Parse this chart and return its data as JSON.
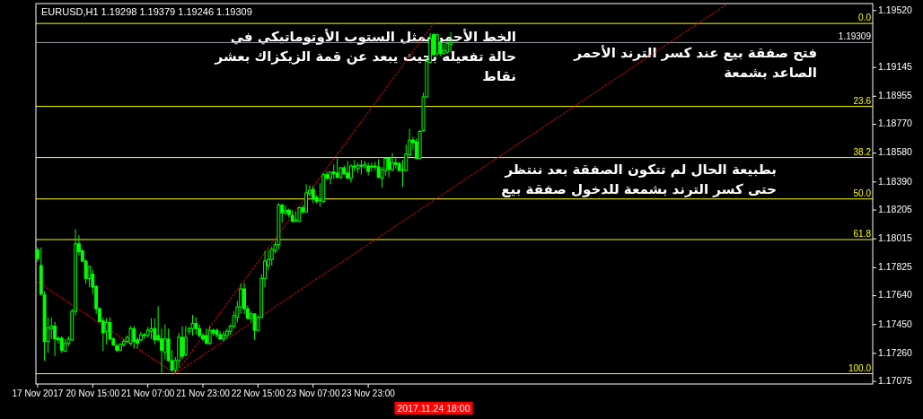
{
  "chart_data": {
    "type": "candlestick",
    "title": "EURUSD,H1  1.19298 1.19379 1.19246 1.19309",
    "color": "#00ff00",
    "categories": [
      "17 Nov 2017",
      null,
      null,
      null,
      null,
      null,
      null,
      null,
      null,
      null,
      null,
      null,
      null,
      null,
      null,
      null,
      "20 Nov 15:00",
      null,
      null,
      null,
      null,
      null,
      null,
      null,
      null,
      null,
      null,
      null,
      null,
      null,
      null,
      null,
      "21 Nov 07:00",
      null,
      null,
      null,
      null,
      null,
      null,
      null,
      null,
      null,
      null,
      null,
      null,
      null,
      null,
      null,
      "21 Nov 23:00",
      null,
      null,
      null,
      null,
      null,
      null,
      null,
      null,
      null,
      null,
      null,
      null,
      null,
      null,
      null,
      "22 Nov 15:00",
      null,
      null,
      null,
      null,
      null,
      null,
      null,
      null,
      null,
      null,
      null,
      null,
      null,
      null,
      null,
      "23 Nov 07:00",
      null,
      null,
      null,
      null,
      null,
      null,
      null,
      null,
      null,
      null,
      null,
      null,
      null,
      null,
      null,
      "23 Nov 23:00",
      null,
      null,
      null,
      null,
      null,
      null,
      null,
      null,
      null,
      null,
      null,
      null,
      null,
      null,
      null,
      null,
      null,
      null,
      null,
      null,
      null,
      null,
      null,
      null,
      null,
      null,
      null,
      null,
      null,
      null,
      null,
      null,
      null,
      null,
      null,
      null,
      null,
      null,
      null,
      null,
      null,
      null,
      null,
      null,
      null,
      null,
      null,
      null,
      null,
      null,
      null,
      null,
      null,
      null,
      null,
      null,
      null,
      null,
      null,
      null,
      null,
      null,
      null,
      null,
      null,
      null,
      null,
      null,
      null,
      null,
      null,
      null,
      null,
      null,
      null,
      null,
      null,
      null,
      null,
      null,
      null,
      null,
      null,
      null,
      null,
      null,
      null,
      null,
      null,
      null,
      null,
      null,
      null,
      null,
      null,
      null,
      null,
      null,
      null,
      null,
      null,
      null,
      null,
      null,
      null,
      null,
      null,
      null,
      null,
      null,
      null,
      null,
      null,
      null,
      null,
      null,
      null,
      null,
      null,
      null,
      null,
      null,
      null,
      null,
      null,
      null,
      null,
      null,
      null,
      null,
      null,
      null,
      null,
      null,
      null,
      null,
      null,
      null,
      null,
      null,
      null,
      null,
      null,
      null,
      null,
      null
    ],
    "ohlc": [
      [
        1.17942,
        1.17959,
        1.17862,
        1.17885
      ],
      [
        1.17839,
        1.17959,
        1.1764,
        1.17651
      ],
      [
        1.17645,
        1.17668,
        1.17212,
        1.17338
      ],
      [
        1.17338,
        1.17497,
        1.17263,
        1.17429
      ],
      [
        1.17423,
        1.17497,
        1.17355,
        1.1744
      ],
      [
        1.1744,
        1.17469,
        1.17241,
        1.17355
      ],
      [
        1.1736,
        1.17372,
        1.17326,
        1.17349
      ],
      [
        1.1736,
        1.17372,
        1.17263,
        1.17281
      ],
      [
        1.17275,
        1.17355,
        1.17269,
        1.17326
      ],
      [
        1.17326,
        1.17372,
        1.17309,
        1.17355
      ],
      [
        1.17349,
        1.17554,
        1.17343,
        1.17537
      ],
      [
        1.17537,
        1.18079,
        1.17509,
        1.17982
      ],
      [
        1.17982,
        1.18039,
        1.17908,
        1.1793
      ],
      [
        1.17936,
        1.17947,
        1.17862,
        1.17868
      ],
      [
        1.17868,
        1.17879,
        1.17719,
        1.17754
      ],
      [
        1.17754,
        1.17839,
        1.17697,
        1.17833
      ],
      [
        1.17782,
        1.17811,
        1.17651,
        1.17697
      ],
      [
        1.17702,
        1.17708,
        1.1752,
        1.17554
      ],
      [
        1.17554,
        1.17566,
        1.17463,
        1.17469
      ],
      [
        1.17474,
        1.17497,
        1.17275,
        1.17395
      ],
      [
        1.17406,
        1.17492,
        1.1732,
        1.17463
      ],
      [
        1.17463,
        1.17497,
        1.17349,
        1.17355
      ],
      [
        1.17355,
        1.17366,
        1.17309,
        1.17315
      ],
      [
        1.17309,
        1.17326,
        1.17269,
        1.17281
      ],
      [
        1.17281,
        1.17326,
        1.17275,
        1.1732
      ],
      [
        1.17315,
        1.17355,
        1.17303,
        1.17338
      ],
      [
        1.17338,
        1.17377,
        1.17326,
        1.17366
      ],
      [
        1.17326,
        1.1744,
        1.17315,
        1.17423
      ],
      [
        1.17423,
        1.1744,
        1.17292,
        1.17338
      ],
      [
        1.17349,
        1.17366,
        1.17292,
        1.17326
      ],
      [
        1.17349,
        1.174,
        1.17338,
        1.17383
      ],
      [
        1.17383,
        1.17395,
        1.17355,
        1.17377
      ],
      [
        1.17377,
        1.17434,
        1.17366,
        1.17412
      ],
      [
        1.17406,
        1.17492,
        1.17355,
        1.17423
      ],
      [
        1.17423,
        1.17492,
        1.1732,
        1.17349
      ],
      [
        1.17377,
        1.17571,
        1.17338,
        1.17349
      ],
      [
        1.17355,
        1.17423,
        1.17132,
        1.17281
      ],
      [
        1.17269,
        1.17451,
        1.17224,
        1.17355
      ],
      [
        1.17355,
        1.17423,
        1.17206,
        1.17212
      ],
      [
        1.17212,
        1.17281,
        1.17139,
        1.1715
      ],
      [
        1.1715,
        1.17235,
        1.17126,
        1.17212
      ],
      [
        1.17212,
        1.17395,
        1.17166,
        1.17366
      ],
      [
        1.17366,
        1.1744,
        1.17224,
        1.17241
      ],
      [
        1.17252,
        1.1744,
        1.17241,
        1.17366
      ],
      [
        1.17406,
        1.17434,
        1.17383,
        1.17423
      ],
      [
        1.17423,
        1.17514,
        1.17377,
        1.17457
      ],
      [
        1.17457,
        1.17497,
        1.17383,
        1.17423
      ],
      [
        1.17423,
        1.17451,
        1.17366,
        1.17377
      ],
      [
        1.17377,
        1.17395,
        1.17338,
        1.17355
      ],
      [
        1.17377,
        1.17423,
        1.1732,
        1.17326
      ],
      [
        1.17326,
        1.1744,
        1.17315,
        1.17412
      ],
      [
        1.17412,
        1.17423,
        1.17377,
        1.17395
      ],
      [
        1.17412,
        1.17423,
        1.17366,
        1.17383
      ],
      [
        1.17383,
        1.17406,
        1.17349,
        1.17355
      ],
      [
        1.17355,
        1.17406,
        1.17338,
        1.17383
      ],
      [
        1.17377,
        1.17423,
        1.17355,
        1.17406
      ],
      [
        1.17406,
        1.17451,
        1.17383,
        1.1744
      ],
      [
        1.1744,
        1.17537,
        1.17423,
        1.17509
      ],
      [
        1.17497,
        1.17605,
        1.17463,
        1.17566
      ],
      [
        1.17566,
        1.17719,
        1.1752,
        1.17685
      ],
      [
        1.17685,
        1.17725,
        1.1752,
        1.17554
      ],
      [
        1.17554,
        1.17577,
        1.1748,
        1.17492
      ],
      [
        1.17492,
        1.17537,
        1.17463,
        1.1752
      ],
      [
        1.1752,
        1.17526,
        1.17349,
        1.17412
      ],
      [
        1.17412,
        1.17509,
        1.17406,
        1.17497
      ],
      [
        1.17497,
        1.17782,
        1.17492,
        1.17754
      ],
      [
        1.17754,
        1.17936,
        1.17697,
        1.17868
      ],
      [
        1.17839,
        1.17942,
        1.17811,
        1.17879
      ],
      [
        1.17879,
        1.17965,
        1.17839,
        1.17947
      ],
      [
        1.17936,
        1.17999,
        1.17919,
        1.17976
      ],
      [
        1.17976,
        1.1825,
        1.17947,
        1.18238
      ],
      [
        1.18238,
        1.18244,
        1.18124,
        1.18187
      ],
      [
        1.18187,
        1.18238,
        1.1817,
        1.18204
      ],
      [
        1.18204,
        1.18215,
        1.18153,
        1.18175
      ],
      [
        1.1817,
        1.18204,
        1.18124,
        1.1813
      ],
      [
        1.1813,
        1.18193,
        1.18124,
        1.18141
      ],
      [
        1.1813,
        1.18227,
        1.18124,
        1.18221
      ],
      [
        1.18221,
        1.18238,
        1.18181,
        1.18193
      ],
      [
        1.18193,
        1.18375,
        1.18187,
        1.18318
      ],
      [
        1.18312,
        1.18369,
        1.18295,
        1.18335
      ],
      [
        1.18341,
        1.18364,
        1.1825,
        1.18278
      ],
      [
        1.18289,
        1.18301,
        1.1825,
        1.18261
      ],
      [
        1.18267,
        1.18381,
        1.18227,
        1.18278
      ],
      [
        1.18261,
        1.18449,
        1.1825,
        1.18438
      ],
      [
        1.18438,
        1.1846,
        1.18404,
        1.18415
      ],
      [
        1.18415,
        1.1846,
        1.18375,
        1.18455
      ],
      [
        1.18455,
        1.18506,
        1.1841,
        1.18443
      ],
      [
        1.18449,
        1.18546,
        1.1841,
        1.18421
      ],
      [
        1.18421,
        1.18489,
        1.1841,
        1.18483
      ],
      [
        1.18483,
        1.185,
        1.18438,
        1.18443
      ],
      [
        1.18449,
        1.18529,
        1.1841,
        1.18415
      ],
      [
        1.18415,
        1.18506,
        1.18386,
        1.18495
      ],
      [
        1.18495,
        1.18535,
        1.1846,
        1.18489
      ],
      [
        1.18478,
        1.18517,
        1.18449,
        1.185
      ],
      [
        1.185,
        1.18535,
        1.18438,
        1.18495
      ],
      [
        1.18495,
        1.18529,
        1.18478,
        1.18506
      ],
      [
        1.18495,
        1.18517,
        1.18432,
        1.1846
      ],
      [
        1.18489,
        1.18517,
        1.1846,
        1.18495
      ],
      [
        1.18495,
        1.18523,
        1.18466,
        1.18489
      ],
      [
        1.18489,
        1.1854,
        1.18415,
        1.18421
      ],
      [
        1.18415,
        1.18489,
        1.18352,
        1.18472
      ],
      [
        1.18466,
        1.18552,
        1.18432,
        1.18546
      ],
      [
        1.18546,
        1.18552,
        1.18421,
        1.18472
      ],
      [
        1.18472,
        1.1858,
        1.1846,
        1.18517
      ],
      [
        1.18517,
        1.18546,
        1.18478,
        1.18506
      ],
      [
        1.18512,
        1.18523,
        1.1846,
        1.18466
      ],
      [
        1.18472,
        1.18535,
        1.18358,
        1.18466
      ],
      [
        1.18466,
        1.18637,
        1.1846,
        1.18574
      ],
      [
        1.18569,
        1.1874,
        1.18557,
        1.18666
      ],
      [
        1.18666,
        1.18688,
        1.18603,
        1.18649
      ],
      [
        1.18655,
        1.18677,
        1.1854,
        1.18546
      ],
      [
        1.18546,
        1.18734,
        1.1854,
        1.18723
      ],
      [
        1.18728,
        1.18979,
        1.18723,
        1.18951
      ],
      [
        1.18951,
        1.19196,
        1.18945,
        1.19184
      ],
      [
        1.19179,
        1.19372,
        1.19173,
        1.19333
      ],
      [
        1.19361,
        1.19372,
        1.19219,
        1.1923
      ],
      [
        1.19236,
        1.19367,
        1.19219,
        1.19361
      ],
      [
        1.19304,
        1.19321,
        1.19219,
        1.19236
      ],
      [
        1.19236,
        1.19304,
        1.1923,
        1.19258
      ],
      [
        1.19247,
        1.1931,
        1.19236,
        1.19304
      ],
      [
        1.19298,
        1.19379,
        1.19246,
        1.19309
      ],
      null,
      null,
      null,
      null,
      null,
      null,
      null,
      null,
      null,
      null,
      null,
      null,
      null,
      null,
      null,
      null,
      null,
      null,
      null,
      null,
      null,
      null,
      null,
      null,
      null,
      null,
      null,
      null,
      null,
      null,
      null,
      null,
      null,
      null,
      null,
      null,
      null,
      null,
      null,
      null,
      null,
      null,
      null,
      null,
      null,
      null,
      null,
      null,
      null,
      null,
      null,
      null,
      null,
      null,
      null,
      null,
      null,
      null,
      null,
      null,
      null,
      null,
      null,
      null,
      null,
      null,
      null,
      null,
      null,
      null,
      null,
      null,
      null,
      null,
      null,
      null,
      null,
      null,
      null,
      null,
      null,
      null,
      null,
      null,
      null,
      null,
      null,
      null,
      null,
      null,
      null,
      null,
      null,
      null,
      null,
      null,
      null,
      null,
      null,
      null,
      null,
      null,
      null,
      null,
      null,
      null,
      null,
      null,
      null,
      null,
      null,
      null,
      null,
      null,
      null,
      null,
      null,
      null,
      null,
      null,
      null,
      null
    ],
    "series": [
      {
        "type": "line",
        "color": "#ff0000",
        "line_style": "dotted",
        "values": [
          1.17731,
          null,
          null,
          null,
          null,
          null,
          null,
          null,
          null,
          null,
          null,
          null,
          null,
          null,
          null,
          null,
          null,
          null,
          null,
          null,
          null,
          null,
          null,
          null,
          null,
          null,
          null,
          null,
          null,
          null,
          null,
          null,
          null,
          null,
          null,
          null,
          null,
          null,
          null,
          null,
          1.17126,
          null,
          null,
          null,
          null,
          null,
          null,
          null,
          null,
          null,
          null,
          null,
          null,
          null,
          null,
          null,
          null,
          null,
          null,
          null,
          null,
          null,
          null,
          null,
          null,
          null,
          null,
          null,
          null,
          null,
          null,
          null,
          null,
          null,
          null,
          null,
          null,
          null,
          null,
          null,
          null,
          null,
          null,
          null,
          null,
          null,
          null,
          null,
          null,
          null,
          null,
          null,
          null,
          null,
          null,
          null,
          null,
          null,
          null,
          null,
          null,
          null,
          null,
          null,
          null,
          null,
          null,
          null,
          null,
          null,
          null,
          null,
          null,
          null,
          null,
          null,
          null,
          null,
          null,
          null,
          null,
          null,
          null,
          null,
          null,
          null,
          null,
          null,
          null,
          null,
          null,
          null,
          null,
          null,
          null,
          null,
          null,
          null,
          null,
          null,
          null,
          null,
          null,
          null,
          null,
          null,
          null,
          null,
          null,
          null,
          null,
          null,
          null,
          null,
          null,
          null,
          null,
          null,
          null,
          null,
          null,
          null,
          null,
          null,
          null,
          null,
          null,
          null,
          null,
          null,
          null,
          null,
          null,
          null,
          null,
          null,
          null,
          null,
          null,
          null,
          null,
          null,
          null,
          null,
          null,
          null,
          null,
          null,
          null,
          null,
          null,
          null,
          null,
          null,
          null,
          null,
          null,
          null,
          null,
          null,
          null,
          null,
          null,
          null,
          null,
          null,
          null,
          null,
          null,
          null,
          null,
          null,
          null,
          null,
          null,
          null,
          null,
          null,
          null,
          null,
          null,
          null,
          null,
          null,
          null,
          null,
          null,
          null,
          null,
          null,
          null,
          null,
          null,
          null,
          null,
          null,
          null,
          null,
          null,
          null,
          null,
          null,
          null
        ]
      },
      {
        "type": "line",
        "color": "#ff0000",
        "line_style": "dotted",
        "values": [
          null,
          null,
          null,
          null,
          null,
          null,
          null,
          null,
          null,
          null,
          null,
          null,
          null,
          null,
          null,
          null,
          null,
          null,
          null,
          null,
          null,
          null,
          null,
          null,
          null,
          null,
          null,
          null,
          null,
          null,
          null,
          null,
          null,
          null,
          null,
          null,
          null,
          null,
          null,
          null,
          1.17126,
          null,
          null,
          null,
          null,
          null,
          null,
          null,
          null,
          null,
          null,
          null,
          null,
          null,
          null,
          null,
          null,
          null,
          null,
          null,
          null,
          null,
          null,
          null,
          null,
          null,
          null,
          null,
          null,
          null,
          null,
          null,
          null,
          null,
          null,
          null,
          null,
          null,
          null,
          null,
          null,
          null,
          null,
          null,
          null,
          null,
          null,
          null,
          null,
          null,
          null,
          null,
          null,
          null,
          null,
          null,
          null,
          null,
          null,
          null,
          null,
          null,
          null,
          null,
          null,
          null,
          null,
          null,
          null,
          null,
          null,
          null,
          null,
          null,
          null,
          1.19435,
          null,
          null,
          null,
          null,
          null,
          null,
          null,
          null,
          null,
          null,
          null,
          null,
          null,
          null,
          null,
          null,
          null,
          null,
          null,
          null,
          null,
          null,
          null,
          null,
          null,
          null,
          null,
          null,
          null,
          null,
          null,
          null,
          null,
          null,
          null,
          null,
          null,
          null,
          null,
          null,
          null,
          null,
          null,
          null,
          null,
          null,
          null,
          null,
          null,
          null,
          null,
          null,
          null,
          null,
          null,
          null,
          null,
          null,
          null,
          null,
          null,
          null,
          null,
          null,
          null,
          null,
          null,
          null,
          null,
          null,
          null,
          null,
          null,
          null,
          null,
          null,
          null,
          null,
          null,
          null,
          null,
          null,
          null,
          null,
          null,
          null,
          null,
          null,
          null,
          null,
          null,
          null,
          null,
          null,
          null,
          null,
          null,
          null,
          null,
          null,
          null,
          null,
          null,
          null,
          null,
          null,
          null,
          null,
          null,
          null,
          null,
          null,
          null,
          null,
          null,
          null,
          null,
          null,
          null,
          null,
          null,
          null,
          null,
          null,
          null,
          null,
          null
        ]
      },
      {
        "type": "line",
        "color": "#ff0000",
        "line_style": "dotted",
        "values": [
          null,
          null,
          null,
          null,
          null,
          null,
          null,
          null,
          null,
          null,
          null,
          null,
          null,
          null,
          null,
          null,
          null,
          null,
          null,
          null,
          null,
          null,
          null,
          null,
          null,
          null,
          null,
          null,
          null,
          null,
          null,
          null,
          null,
          null,
          null,
          null,
          null,
          null,
          null,
          null,
          1.17126,
          null,
          null,
          null,
          null,
          null,
          null,
          null,
          null,
          null,
          null,
          null,
          null,
          null,
          null,
          null,
          null,
          null,
          null,
          null,
          null,
          null,
          null,
          null,
          null,
          null,
          null,
          null,
          null,
          null,
          null,
          null,
          null,
          null,
          null,
          null,
          null,
          null,
          null,
          null,
          null,
          null,
          null,
          null,
          null,
          null,
          null,
          null,
          null,
          null,
          null,
          null,
          null,
          null,
          null,
          null,
          null,
          null,
          null,
          null,
          null,
          null,
          null,
          null,
          null,
          null,
          null,
          null,
          null,
          null,
          null,
          null,
          null,
          null,
          null,
          null,
          null,
          null,
          null,
          null,
          null,
          null,
          null,
          null,
          null,
          null,
          null,
          null,
          null,
          null,
          null,
          null,
          null,
          null,
          null,
          null,
          null,
          null,
          null,
          null,
          null,
          null,
          null,
          null,
          null,
          null,
          null,
          null,
          null,
          null,
          null,
          null,
          null,
          null,
          null,
          null,
          null,
          null,
          null,
          null,
          null,
          null,
          null,
          null,
          null,
          null,
          null,
          null,
          null,
          null,
          null,
          null,
          null,
          null,
          null,
          null,
          null,
          null,
          null,
          null,
          null,
          null,
          null,
          null,
          null,
          null,
          null,
          null,
          null,
          null,
          null,
          null,
          null,
          null,
          null,
          null,
          null,
          null,
          null,
          null,
          1.1956,
          null,
          null,
          null,
          null,
          null,
          null,
          null,
          null,
          null,
          null,
          null,
          null,
          null,
          null,
          null,
          null,
          null,
          null,
          null,
          null,
          null,
          null,
          null,
          null,
          null,
          null,
          null,
          null,
          null,
          null,
          null,
          null,
          null,
          null,
          null,
          null,
          null,
          null,
          null,
          null,
          null,
          null
        ]
      }
    ],
    "ylim": [
      1.17058,
      1.19566
    ],
    "yticks": [
      {
        "value": 1.17075,
        "label": "1.17075"
      },
      {
        "value": 1.1726,
        "label": "1.17260"
      },
      {
        "value": 1.1745,
        "label": "1.17450"
      },
      {
        "value": 1.1764,
        "label": "1.17640"
      },
      {
        "value": 1.17825,
        "label": "1.17825"
      },
      {
        "value": 1.18015,
        "label": "1.18015"
      },
      {
        "value": 1.18205,
        "label": "1.18205"
      },
      {
        "value": 1.1839,
        "label": "1.18390"
      },
      {
        "value": 1.1858,
        "label": "1.18580"
      },
      {
        "value": 1.1877,
        "label": "1.18770"
      },
      {
        "value": 1.18955,
        "label": "1.18955"
      },
      {
        "value": 1.19145,
        "label": "1.19145"
      },
      {
        "value": 1.1952,
        "label": "1.19520"
      }
    ],
    "ref_lines": [
      {
        "axis": "y",
        "value": 1.19435,
        "color": "#ffff00"
      },
      {
        "axis": "y",
        "value": 1.18888,
        "color": "#ffff00"
      },
      {
        "axis": "y",
        "value": 1.18551,
        "color": "#ffff00"
      },
      {
        "axis": "y",
        "value": 1.18278,
        "color": "#ffff00"
      },
      {
        "axis": "y",
        "value": 1.1801,
        "color": "#ffff00"
      },
      {
        "axis": "y",
        "value": 1.17126,
        "color": "#ffff00"
      },
      {
        "axis": "y",
        "value": 1.19309,
        "label": "1.19309",
        "color": "#9aa0a6"
      }
    ],
    "annotations": [
      "الخط الأحمر يمثل الستوب الأوتوماتيكي في\nحالة تفعيله بحيث يبعد عن قمة الزيكزاك بعشر\nنقاط",
      "فتح صفقة بيع عند كسر الترند الأحمر\nالصاعد بشمعة",
      "بطبيعة الحال لم تتكون الصفقة بعد ننتظر\nحتى كسر الترند بشمعة للدخول صفقة بيع",
      "2017.11.24 18:00",
      {
        "text": "0.0",
        "y": 1.19435
      },
      {
        "text": "23.6",
        "y": 1.18888
      },
      {
        "text": "38.2",
        "y": 1.18551
      },
      {
        "text": "50.0",
        "y": 1.18278
      },
      {
        "text": "61.8",
        "y": 1.1801
      },
      {
        "text": "100.0",
        "y": 1.17126
      }
    ]
  }
}
